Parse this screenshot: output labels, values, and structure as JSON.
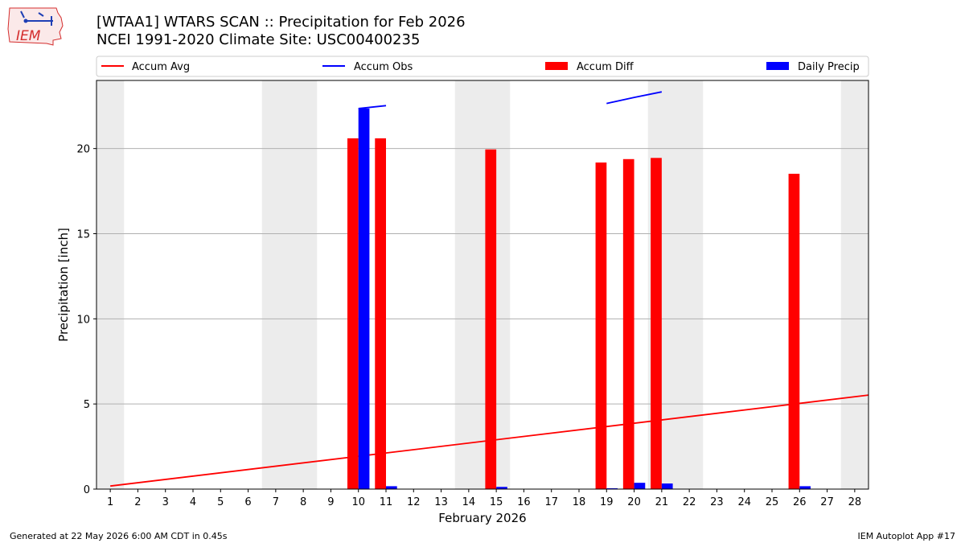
{
  "header": {
    "title_line1": "[WTAA1] WTARS SCAN :: Precipitation for Feb 2026",
    "title_line2": "NCEI 1991-2020 Climate Site: USC00400235"
  },
  "logo": {
    "text": "IEM",
    "color": "#d42d2d"
  },
  "footer": {
    "left": "Generated at 22 May 2026 6:00 AM CDT in 0.45s",
    "right": "IEM Autoplot App #17"
  },
  "chart_data": {
    "type": "bar",
    "xlabel": "February 2026",
    "ylabel": "Precipitation [inch]",
    "xlim": [
      0.5,
      28.5
    ],
    "ylim": [
      0,
      24
    ],
    "yticks": [
      0,
      5,
      10,
      15,
      20
    ],
    "grid": "horizontal",
    "legend_placement": "top",
    "weekend_shading_color": "#ececec",
    "days": [
      1,
      2,
      3,
      4,
      5,
      6,
      7,
      8,
      9,
      10,
      11,
      12,
      13,
      14,
      15,
      16,
      17,
      18,
      19,
      20,
      21,
      22,
      23,
      24,
      25,
      26,
      27,
      28
    ],
    "weekend_days": [
      1,
      7,
      8,
      14,
      15,
      21,
      22,
      28
    ],
    "series": [
      {
        "name": "Accum Avg",
        "kind": "line",
        "color": "#ff0000",
        "x": [
          1,
          28.5
        ],
        "y": [
          0.18,
          5.52
        ]
      },
      {
        "name": "Accum Obs",
        "kind": "line",
        "color": "#0000ff",
        "segments": [
          {
            "x": [
              10,
              11
            ],
            "y": [
              22.35,
              22.52
            ]
          },
          {
            "x": [
              19,
              20,
              21
            ],
            "y": [
              22.65,
              23.0,
              23.33
            ]
          }
        ]
      },
      {
        "name": "Accum Diff",
        "kind": "bar",
        "color": "#ff0000",
        "x": [
          10,
          11,
          15,
          19,
          20,
          21,
          26
        ],
        "y": [
          20.6,
          20.6,
          19.95,
          19.18,
          19.38,
          19.45,
          18.52
        ]
      },
      {
        "name": "Daily Precip",
        "kind": "bar",
        "color": "#0000ff",
        "x": [
          10,
          11,
          15,
          19,
          20,
          21,
          26
        ],
        "y": [
          22.35,
          0.17,
          0.13,
          0.05,
          0.37,
          0.33,
          0.17
        ]
      }
    ]
  }
}
